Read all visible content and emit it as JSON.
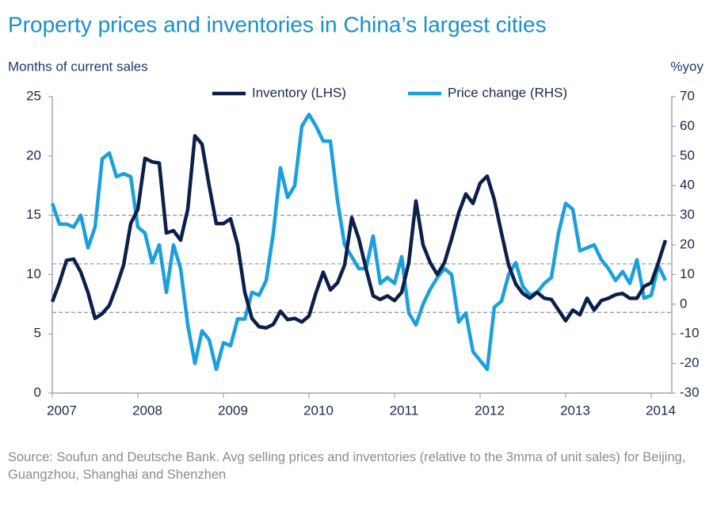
{
  "chart_data": {
    "type": "line",
    "title": "Property prices and inventories in China’s largest cities",
    "y_label": "Months of current sales",
    "y2_label": "%yoy",
    "source": "Source: Soufun and Deutsche Bank. Avg selling prices and inventories (relative to the 3mma of unit sales) for Beijing, Guangzhou, Shanghai and Shenzhen",
    "categories": [
      "2007",
      null,
      null,
      null,
      null,
      null,
      null,
      null,
      null,
      null,
      null,
      null,
      "2008",
      null,
      null,
      null,
      null,
      null,
      null,
      null,
      null,
      null,
      null,
      null,
      "2009",
      null,
      null,
      null,
      null,
      null,
      null,
      null,
      null,
      null,
      null,
      null,
      "2010",
      null,
      null,
      null,
      null,
      null,
      null,
      null,
      null,
      null,
      null,
      null,
      "2011",
      null,
      null,
      null,
      null,
      null,
      null,
      null,
      null,
      null,
      null,
      null,
      "2012",
      null,
      null,
      null,
      null,
      null,
      null,
      null,
      null,
      null,
      null,
      null,
      "2013",
      null,
      null,
      null,
      null,
      null,
      null,
      null,
      null,
      null,
      null,
      null,
      "2014",
      null,
      null
    ],
    "series": [
      {
        "name": "Inventory (LHS)",
        "color": "#0c1f4a",
        "axis": "y",
        "values": [
          7.7,
          9.3,
          11.2,
          11.3,
          10.2,
          8.5,
          6.3,
          6.7,
          7.4,
          9.0,
          10.8,
          14.3,
          15.5,
          19.8,
          19.5,
          19.4,
          13.5,
          13.7,
          12.9,
          15.5,
          21.7,
          21.0,
          17.5,
          14.3,
          14.3,
          14.7,
          12.5,
          8.5,
          6.3,
          5.6,
          5.5,
          5.8,
          6.9,
          6.2,
          6.3,
          6.0,
          6.5,
          8.5,
          10.2,
          8.7,
          9.3,
          10.8,
          14.8,
          13.0,
          10.5,
          8.2,
          7.9,
          8.2,
          7.8,
          8.5,
          11.0,
          16.2,
          12.5,
          11.0,
          10.0,
          11.0,
          13.0,
          15.2,
          16.8,
          16.0,
          17.7,
          18.3,
          16.3,
          13.5,
          10.8,
          9.2,
          8.4,
          8.0,
          8.5,
          8.0,
          7.9,
          7.0,
          6.1,
          7.0,
          6.6,
          8.0,
          7.0,
          7.8,
          8.0,
          8.3,
          8.4,
          8.0,
          8.0,
          9.0,
          9.3,
          11.0,
          12.9
        ]
      },
      {
        "name": "Price change (RHS)",
        "color": "#1aa0dc",
        "axis": "y2",
        "values": [
          34,
          27,
          27,
          26,
          30,
          19,
          26,
          49,
          51,
          43,
          44,
          43,
          26,
          24,
          14,
          20,
          4,
          20,
          12,
          -7,
          -20,
          -9,
          -12,
          -22,
          -13,
          -14,
          -5,
          -5,
          4,
          3,
          8,
          24,
          46,
          36,
          40,
          60,
          64,
          60,
          55,
          55,
          35,
          20,
          16,
          12,
          12,
          23,
          7,
          9,
          7,
          16,
          -3,
          -7,
          0,
          5,
          9,
          12,
          10,
          -6,
          -3,
          -16,
          -19,
          -22,
          -1,
          1,
          10,
          14,
          6,
          3,
          4,
          7,
          9,
          24,
          34,
          32,
          18,
          19,
          20,
          15,
          12,
          8,
          11,
          7,
          15,
          2,
          3,
          13,
          8
        ]
      }
    ],
    "reference_lines": [
      15,
      10.9,
      6.8
    ],
    "reference_color": "#8a93a8",
    "ylim": [
      0,
      25
    ],
    "yticks": [
      0,
      5,
      10,
      15,
      20,
      25
    ],
    "y2lim": [
      -30,
      70
    ],
    "y2ticks": [
      -30,
      -20,
      -10,
      0,
      10,
      20,
      30,
      40,
      50,
      60,
      70
    ],
    "legend": "top"
  }
}
